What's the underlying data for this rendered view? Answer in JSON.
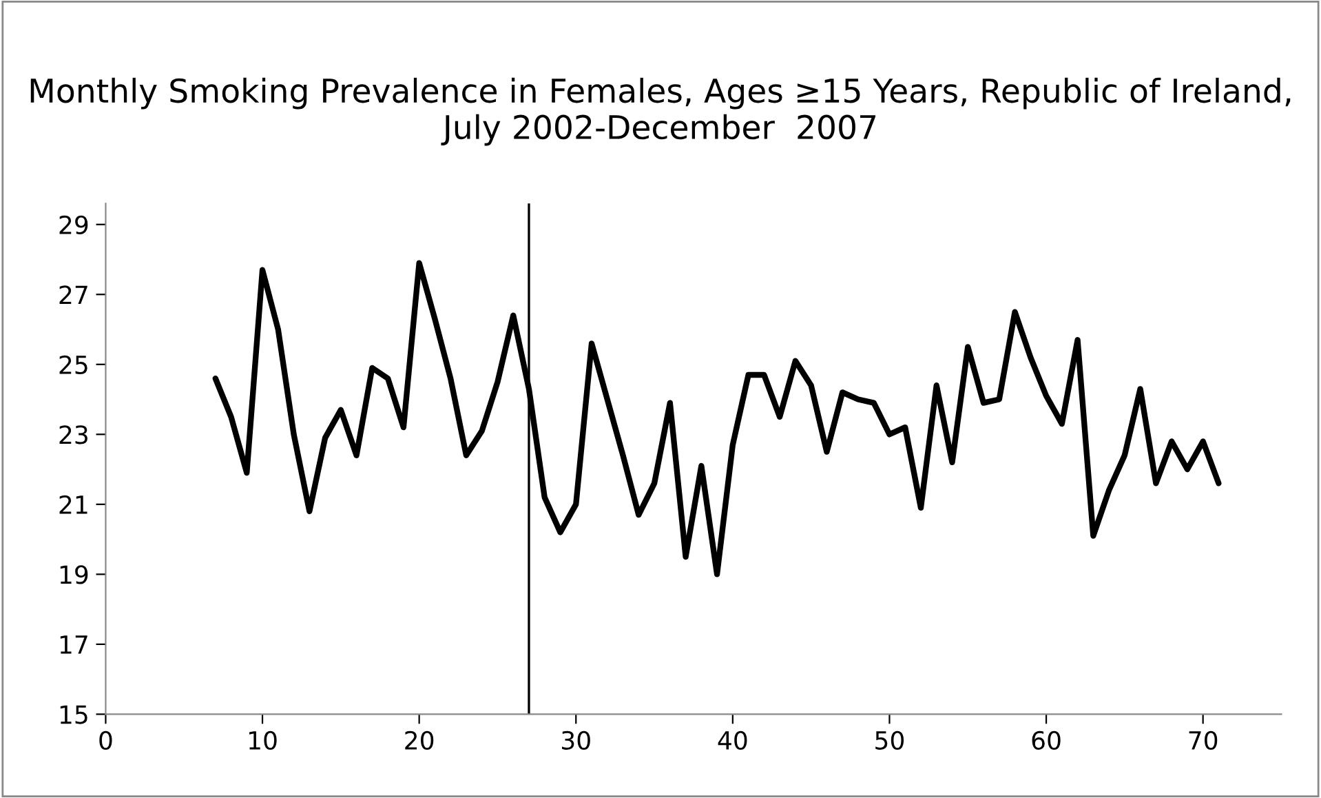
{
  "chart_data": {
    "type": "line",
    "title": "Monthly Smoking Prevalence in Females, Ages ≥15 Years, Republic of Ireland, July 2002-December  2007",
    "x": [
      7,
      8,
      9,
      10,
      11,
      12,
      13,
      14,
      15,
      16,
      17,
      18,
      19,
      20,
      21,
      22,
      23,
      24,
      25,
      26,
      27,
      28,
      29,
      30,
      31,
      32,
      33,
      34,
      35,
      36,
      37,
      38,
      39,
      40,
      41,
      42,
      43,
      44,
      45,
      46,
      47,
      48,
      49,
      50,
      51,
      52,
      53,
      54,
      55,
      56,
      57,
      58,
      59,
      60,
      61,
      62,
      63,
      64,
      65,
      66,
      67,
      68,
      69,
      70,
      71
    ],
    "series": [
      {
        "color": "#000000",
        "values": [
          24.6,
          23.5,
          21.9,
          27.7,
          26,
          23,
          20.8,
          22.9,
          23.7,
          22.4,
          24.9,
          24.6,
          23.2,
          27.9,
          26.3,
          24.6,
          22.4,
          23.1,
          24.5,
          26.4,
          24.3,
          21.2,
          20.2,
          21,
          25.6,
          24,
          22.4,
          20.7,
          21.6,
          23.9,
          19.5,
          22.1,
          19,
          22.7,
          24.7,
          24.7,
          23.5,
          25.1,
          24.4,
          22.5,
          24.2,
          24,
          23.9,
          23,
          23.2,
          20.9,
          24.4,
          22.2,
          25.5,
          23.9,
          24,
          26.5,
          25.2,
          24.1,
          23.3,
          25.7,
          20.1,
          21.4,
          22.4,
          24.3,
          21.6,
          22.8,
          22,
          22.8,
          21.6
        ]
      }
    ],
    "xlim": [
      0,
      75
    ],
    "xticks": [
      0,
      10,
      20,
      30,
      40,
      50,
      60,
      70
    ],
    "ylim": [
      15,
      29.6
    ],
    "yticks": [
      15,
      17,
      19,
      21,
      23,
      25,
      27,
      29
    ],
    "ref_lines": [
      {
        "axis": "x",
        "value": 27,
        "color": "#000000"
      }
    ],
    "grid": false,
    "legend": false,
    "marker": "none",
    "line_style": "solid"
  }
}
